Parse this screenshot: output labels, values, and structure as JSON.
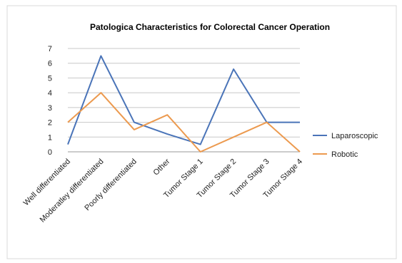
{
  "chart_data": {
    "type": "line",
    "title": "Patologica Characteristics for Colorectal Cancer Operation",
    "categories": [
      "Well differentiated",
      "Moderatley differentiated",
      "Poorly differentiated",
      "Other",
      "Tumor Stage 1",
      "Tumor Stage 2",
      "Tumor Stage 3",
      "Tumor Stage 4"
    ],
    "series": [
      {
        "name": "Laparoscopic",
        "color": "#4a74b8",
        "values": [
          0.5,
          6.5,
          2,
          1.2,
          0.5,
          5.6,
          2,
          2
        ]
      },
      {
        "name": "Robotic",
        "color": "#ec9a4f",
        "values": [
          2,
          4,
          1.5,
          2.5,
          0,
          1,
          2,
          0
        ]
      }
    ],
    "ylim": [
      0,
      7
    ],
    "yticks": [
      "0",
      "1",
      "2",
      "3",
      "4",
      "5",
      "6",
      "7"
    ],
    "grid": true,
    "legend": "right"
  }
}
